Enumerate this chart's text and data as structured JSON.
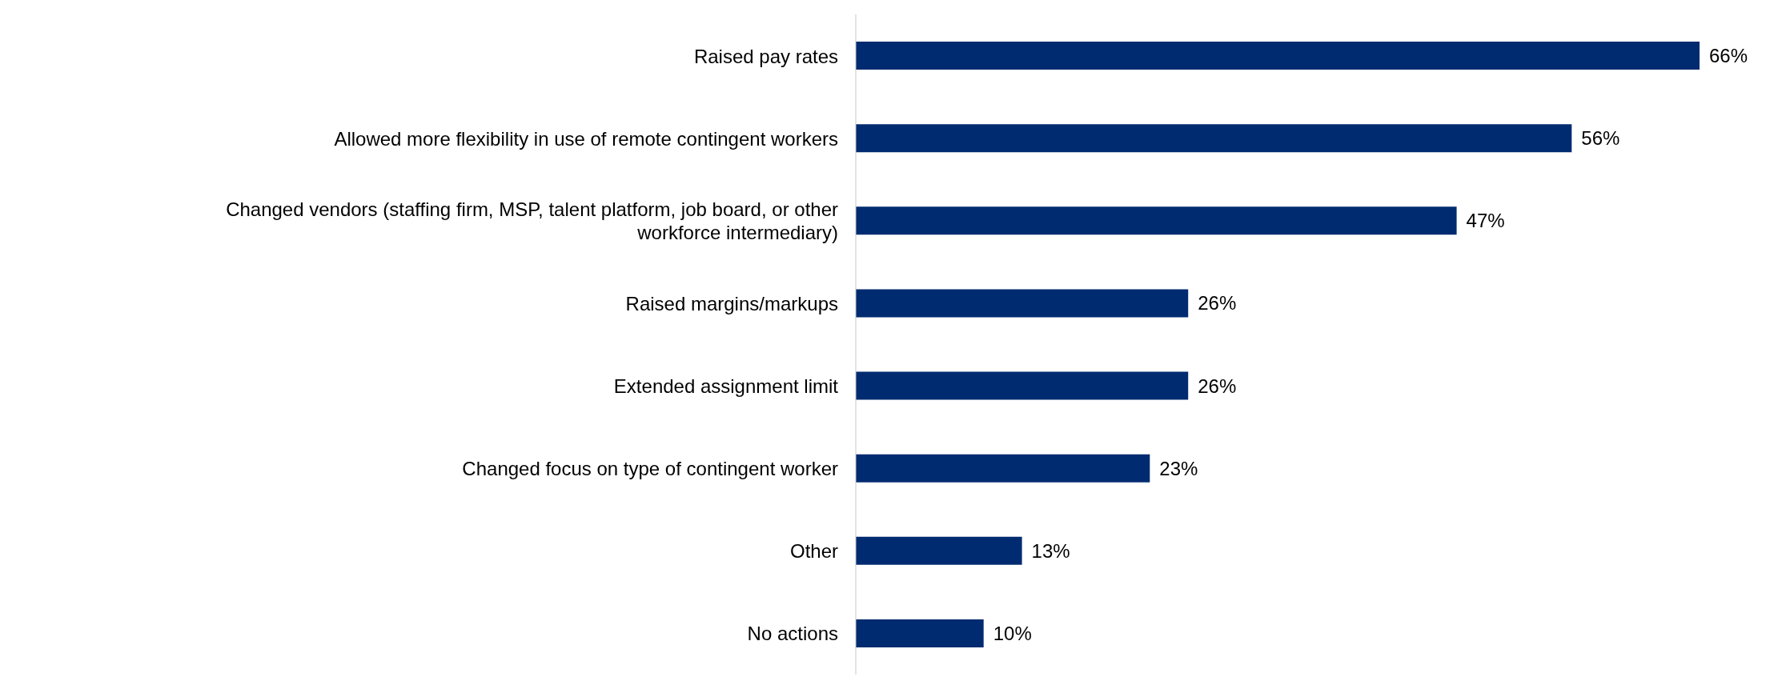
{
  "chart_data": {
    "type": "bar",
    "orientation": "horizontal",
    "categories": [
      "Raised pay rates",
      "Allowed more flexibility in use of remote contingent workers",
      "Changed vendors (staffing firm, MSP, talent platform, job board, or other workforce intermediary)",
      "Raised margins/markups",
      "Extended assignment limit",
      "Changed focus on type of contingent worker",
      "Other",
      "No actions"
    ],
    "values": [
      66,
      56,
      47,
      26,
      26,
      23,
      13,
      10
    ],
    "value_labels": [
      "66%",
      "56%",
      "47%",
      "26%",
      "26%",
      "23%",
      "13%",
      "10%"
    ],
    "color": "#002b70"
  }
}
